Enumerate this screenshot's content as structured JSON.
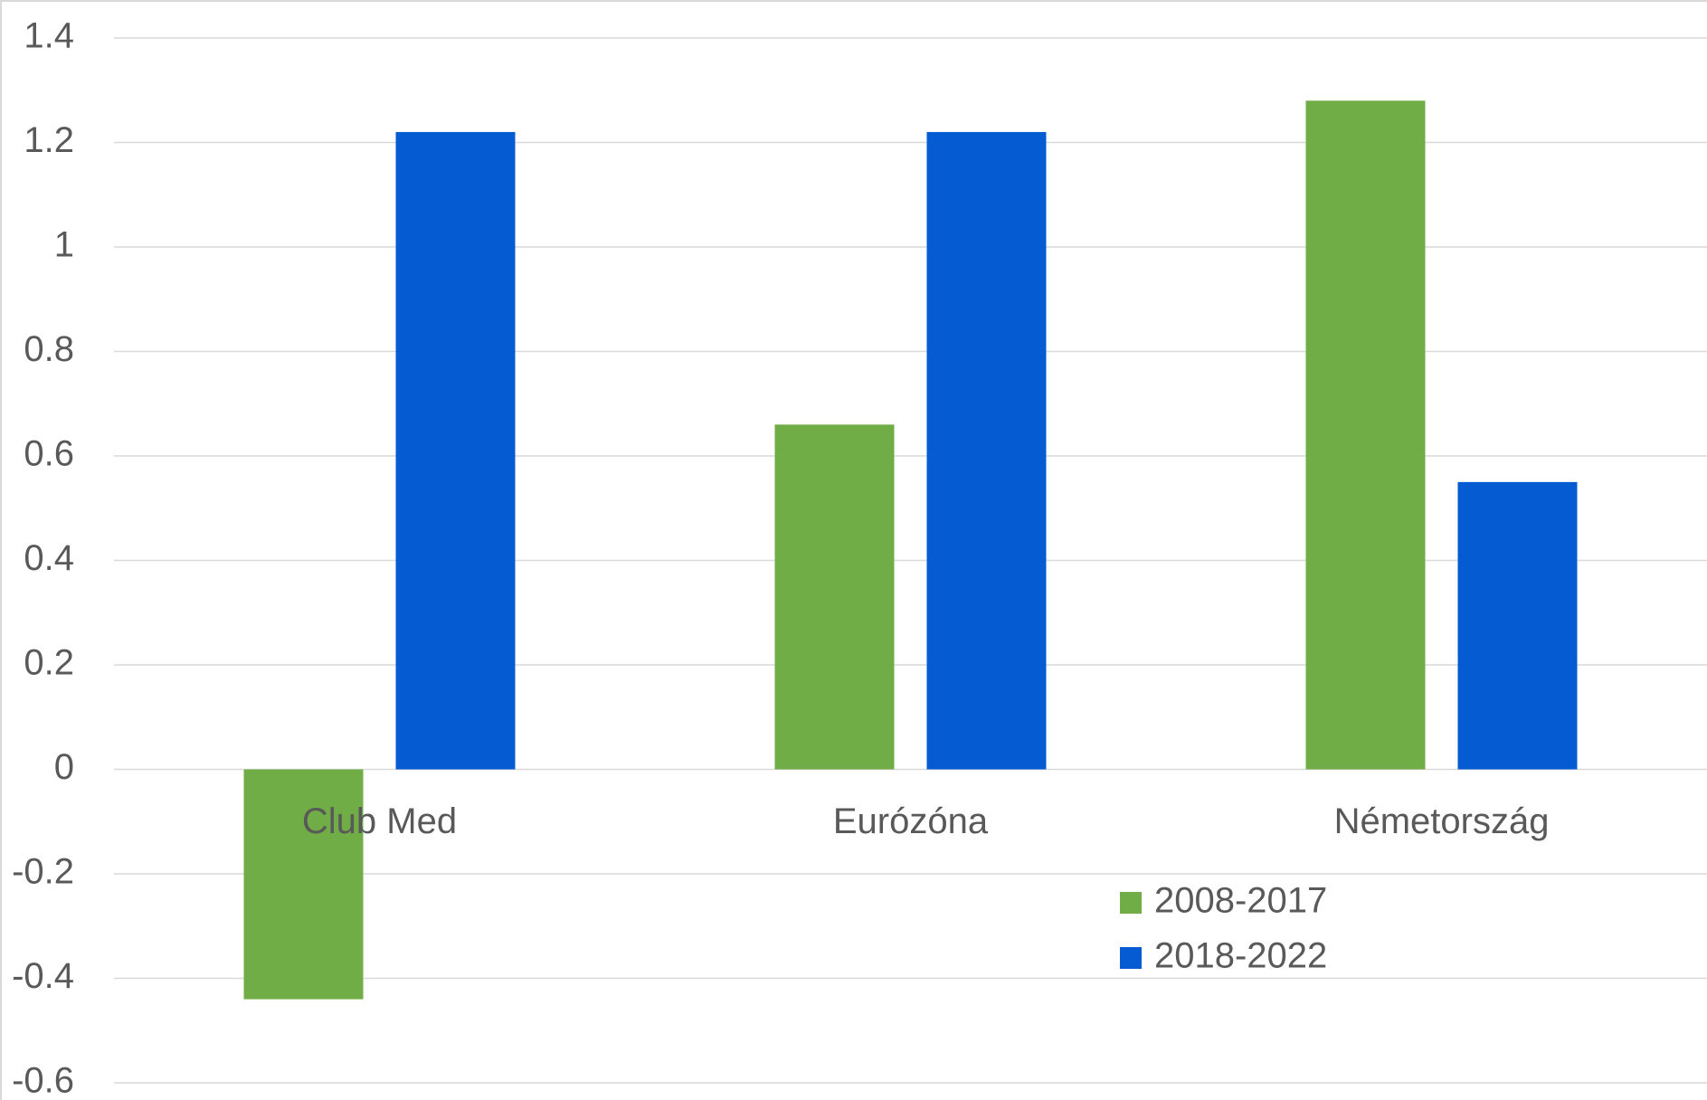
{
  "chart_data": {
    "type": "bar",
    "title": "",
    "xlabel": "",
    "ylabel": "",
    "categories": [
      "Club Med",
      "Eurózóna",
      "Németország"
    ],
    "series": [
      {
        "name": "2008-2017",
        "color": "#70AD47",
        "values": [
          -0.44,
          0.66,
          1.28
        ]
      },
      {
        "name": "2018-2022",
        "color": "#055BD1",
        "values": [
          1.22,
          1.22,
          0.55
        ]
      }
    ],
    "ylim": [
      -0.6,
      1.4
    ],
    "yticks": [
      1.4,
      1.2,
      1,
      0.8,
      0.6,
      0.4,
      0.2,
      0,
      -0.2,
      -0.4,
      -0.6
    ],
    "ytick_labels": [
      "1.4",
      "1.2",
      "1",
      "0.8",
      "0.6",
      "0.4",
      "0.2",
      "0",
      "-0.2",
      "-0.4",
      "-0.6"
    ],
    "grid": true,
    "legend_position": "bottom-center"
  }
}
